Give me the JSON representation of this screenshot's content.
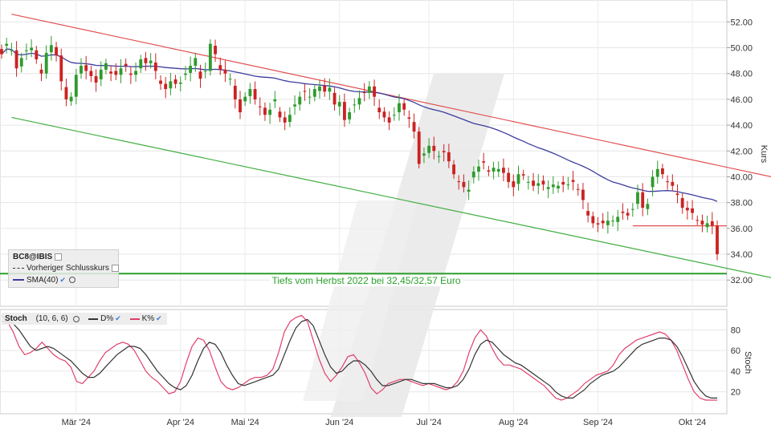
{
  "legend": {
    "symbol": "BC8@IBIS",
    "prev_close": "Vorheriger Schlusskurs",
    "sma": "SMA(40)"
  },
  "stoch_legend": {
    "name": "Stoch",
    "params": "(10, 6, 6)",
    "d_label": "D%",
    "k_label": "K%"
  },
  "annotation": "Tiefs vom Herbst 2022 bei 32,45/32,57 Euro",
  "icons": {
    "settings": "gear-icon",
    "visible": "check-icon"
  },
  "colors": {
    "up": "#2e9b2e",
    "down": "#cc2222",
    "sma": "#3c3c9e",
    "resistance": "#e05050",
    "support": "#3fae3f",
    "horizontal": "#2ca02c",
    "k": "#e0406a",
    "d": "#333333"
  },
  "chart_data": [
    {
      "type": "candlestick",
      "ylabel": "Kurs",
      "ylim": [
        30.4,
        53.2
      ],
      "yticks": [
        "52.00",
        "50.00",
        "48.00",
        "46.00",
        "44.00",
        "42.00",
        "40.00",
        "38.00",
        "36.00",
        "34.00",
        "32.00"
      ],
      "xticks": [
        "Mär '24",
        "Apr '24",
        "Mai '24",
        "Jun '24",
        "Jul '24",
        "Aug '24",
        "Sep '24",
        "Okt '24"
      ],
      "grid": true,
      "sma_period": 40,
      "lines": {
        "resistance": [
          [
            2,
            52.6
          ],
          [
            167,
            39.0
          ]
        ],
        "support": [
          [
            2,
            44.6
          ],
          [
            167,
            31.2
          ]
        ],
        "horizontal_36_2": {
          "from_index": 127,
          "y": 36.2
        },
        "tiefs_2022": {
          "y": 32.5
        }
      },
      "closes": [
        49.5,
        50.3,
        49.8,
        48.4,
        49.2,
        49.8,
        50.0,
        49.1,
        48.0,
        49.6,
        50.2,
        49.4,
        47.4,
        46.0,
        46.2,
        47.9,
        48.6,
        48.2,
        47.8,
        47.3,
        48.3,
        48.8,
        48.0,
        47.9,
        48.4,
        48.6,
        47.9,
        48.2,
        49.1,
        48.8,
        49.0,
        48.2,
        47.2,
        46.8,
        47.4,
        47.2,
        47.3,
        48.0,
        48.6,
        49.2,
        47.6,
        48.2,
        50.3,
        49.5,
        48.3,
        48.0,
        47.6,
        46.0,
        45.0,
        46.2,
        46.8,
        46.0,
        45.4,
        44.8,
        45.2,
        46.0,
        44.6,
        44.2,
        44.8,
        45.6,
        46.2,
        46.6,
        46.2,
        46.8,
        47.0,
        46.6,
        46.9,
        45.6,
        45.8,
        44.4,
        45.0,
        45.6,
        46.1,
        46.5,
        47.0,
        46.2,
        45.0,
        44.6,
        44.2,
        44.8,
        45.7,
        45.2,
        44.5,
        43.5,
        41.0,
        41.8,
        42.4,
        42.0,
        41.6,
        41.9,
        41.2,
        40.2,
        39.6,
        39.2,
        39.0,
        40.4,
        40.8,
        41.1,
        40.4,
        40.7,
        40.6,
        40.3,
        39.6,
        39.2,
        40.2,
        40.1,
        39.6,
        39.3,
        39.5,
        39.4,
        39.2,
        39.4,
        39.3,
        39.4,
        39.4,
        39.6,
        39.0,
        38.2,
        37.0,
        36.4,
        36.3,
        36.4,
        36.6,
        36.6,
        36.9,
        37.2,
        37.0,
        37.5,
        38.8,
        37.6,
        37.9,
        40.0,
        40.6,
        40.2,
        39.6,
        39.3,
        38.6,
        37.6,
        37.4,
        37.2,
        36.6,
        36.3,
        36.4,
        36.2,
        34.0
      ],
      "stoch": {
        "ylim": [
          5,
          95
        ],
        "yticks": [
          "80",
          "60",
          "40",
          "20"
        ],
        "ylabel": "Stoch",
        "k": [
          94,
          88,
          78,
          64,
          56,
          58,
          62,
          68,
          62,
          56,
          52,
          50,
          44,
          30,
          28,
          34,
          40,
          50,
          58,
          62,
          66,
          68,
          66,
          60,
          50,
          40,
          34,
          30,
          24,
          18,
          20,
          30,
          48,
          64,
          72,
          70,
          60,
          44,
          30,
          24,
          22,
          24,
          28,
          32,
          34,
          34,
          36,
          42,
          58,
          78,
          88,
          92,
          94,
          88,
          70,
          52,
          38,
          30,
          36,
          44,
          54,
          56,
          48,
          38,
          24,
          18,
          22,
          28,
          30,
          32,
          32,
          30,
          28,
          26,
          28,
          26,
          24,
          22,
          24,
          30,
          40,
          58,
          72,
          80,
          74,
          62,
          52,
          46,
          46,
          44,
          42,
          38,
          34,
          30,
          26,
          20,
          14,
          12,
          14,
          18,
          22,
          28,
          32,
          36,
          38,
          40,
          46,
          56,
          62,
          66,
          70,
          72,
          74,
          76,
          78,
          76,
          70,
          60,
          46,
          32,
          20,
          14,
          12,
          12,
          12
        ],
        "d": [
          88,
          88,
          86,
          80,
          72,
          64,
          60,
          62,
          64,
          62,
          58,
          54,
          50,
          44,
          38,
          34,
          34,
          38,
          44,
          50,
          56,
          60,
          64,
          64,
          62,
          56,
          48,
          40,
          34,
          28,
          24,
          22,
          26,
          36,
          50,
          62,
          68,
          66,
          58,
          46,
          36,
          28,
          26,
          28,
          30,
          32,
          34,
          36,
          42,
          56,
          70,
          82,
          88,
          90,
          84,
          70,
          56,
          44,
          38,
          40,
          46,
          50,
          50,
          46,
          40,
          32,
          26,
          26,
          28,
          30,
          32,
          32,
          30,
          28,
          28,
          28,
          26,
          24,
          24,
          26,
          32,
          42,
          56,
          66,
          70,
          68,
          62,
          56,
          52,
          48,
          46,
          42,
          38,
          34,
          30,
          26,
          20,
          16,
          14,
          14,
          18,
          22,
          28,
          32,
          36,
          38,
          40,
          44,
          50,
          56,
          62,
          66,
          68,
          70,
          72,
          72,
          70,
          64,
          54,
          42,
          30,
          22,
          16,
          14,
          14
        ]
      }
    }
  ]
}
